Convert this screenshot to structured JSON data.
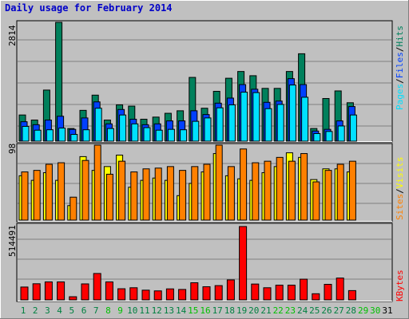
{
  "title": "Daily usage for February 2014",
  "colors": {
    "background": "#C0C0C0",
    "hits": "#00805C",
    "files": "#0040FF",
    "pages": "#00E0FF",
    "visits": "#FFFF00",
    "sites": "#FF8000",
    "kbytes": "#FF0000",
    "title": "#0000C8",
    "weekday": "#008040",
    "weekend_day": "#00C000"
  },
  "labels": {
    "pages": "Pages",
    "files": "Files",
    "hits": "Hits",
    "sites": "Sites",
    "visits": "Visits",
    "kbytes": "KBytes",
    "sep": "/"
  },
  "axis_max": {
    "top": "2814",
    "middle": "98",
    "bottom": "514491"
  },
  "chart_data": [
    {
      "type": "bar",
      "panel": "hits-files-pages",
      "categories": [
        "1",
        "2",
        "3",
        "4",
        "5",
        "6",
        "7",
        "8",
        "9",
        "10",
        "11",
        "12",
        "13",
        "14",
        "15",
        "16",
        "17",
        "18",
        "19",
        "20",
        "21",
        "22",
        "23",
        "24",
        "25",
        "26",
        "27",
        "28",
        "29",
        "30",
        "31"
      ],
      "ylim": [
        0,
        2814
      ],
      "series": [
        {
          "name": "Hits",
          "values": [
            620,
            500,
            1210,
            2814,
            300,
            730,
            1090,
            500,
            860,
            830,
            520,
            570,
            660,
            720,
            1510,
            780,
            1180,
            1490,
            1650,
            1550,
            1250,
            1250,
            1650,
            2070,
            300,
            1010,
            1190,
            910,
            0,
            0,
            0
          ]
        },
        {
          "name": "Files",
          "values": [
            460,
            390,
            500,
            590,
            280,
            550,
            930,
            410,
            750,
            520,
            390,
            410,
            480,
            480,
            720,
            630,
            900,
            1020,
            1340,
            1230,
            920,
            950,
            1480,
            1340,
            240,
            280,
            480,
            820,
            0,
            0,
            0
          ]
        },
        {
          "name": "Pages",
          "values": [
            350,
            260,
            270,
            310,
            160,
            270,
            780,
            300,
            620,
            410,
            320,
            260,
            280,
            270,
            470,
            550,
            790,
            860,
            1160,
            1150,
            770,
            870,
            1330,
            1040,
            180,
            230,
            360,
            620,
            0,
            0,
            0
          ]
        }
      ]
    },
    {
      "type": "bar",
      "panel": "visits-sites",
      "categories": [
        "1",
        "2",
        "3",
        "4",
        "5",
        "6",
        "7",
        "8",
        "9",
        "10",
        "11",
        "12",
        "13",
        "14",
        "15",
        "16",
        "17",
        "18",
        "19",
        "20",
        "21",
        "22",
        "23",
        "24",
        "25",
        "26",
        "27",
        "28",
        "29",
        "30",
        "31"
      ],
      "ylim": [
        0,
        98
      ],
      "series": [
        {
          "name": "Visits",
          "values": [
            58,
            52,
            62,
            52,
            19,
            83,
            65,
            70,
            85,
            43,
            52,
            55,
            52,
            32,
            48,
            63,
            87,
            58,
            54,
            52,
            62,
            70,
            88,
            82,
            53,
            67,
            67,
            63,
            0,
            0,
            0
          ]
        },
        {
          "name": "Sites",
          "values": [
            63,
            65,
            73,
            75,
            30,
            78,
            98,
            60,
            77,
            63,
            67,
            68,
            70,
            65,
            70,
            73,
            98,
            70,
            93,
            75,
            77,
            82,
            77,
            87,
            50,
            65,
            73,
            77,
            0,
            0,
            0
          ]
        }
      ]
    },
    {
      "type": "bar",
      "panel": "kbytes",
      "categories": [
        "1",
        "2",
        "3",
        "4",
        "5",
        "6",
        "7",
        "8",
        "9",
        "10",
        "11",
        "12",
        "13",
        "14",
        "15",
        "16",
        "17",
        "18",
        "19",
        "20",
        "21",
        "22",
        "23",
        "24",
        "25",
        "26",
        "27",
        "28",
        "29",
        "30",
        "31"
      ],
      "ylim": [
        0,
        514491
      ],
      "series": [
        {
          "name": "KBytes",
          "values": [
            90000,
            113000,
            126000,
            126000,
            22000,
            112000,
            185000,
            126000,
            78000,
            85000,
            68000,
            63000,
            77000,
            73000,
            120000,
            92000,
            100000,
            140000,
            514491,
            111000,
            85000,
            103000,
            103000,
            145000,
            43000,
            109000,
            153000,
            65000,
            0,
            0,
            0
          ]
        }
      ]
    }
  ],
  "days": [
    {
      "label": "1",
      "weekend": false
    },
    {
      "label": "2",
      "weekend": false
    },
    {
      "label": "3",
      "weekend": false
    },
    {
      "label": "4",
      "weekend": false
    },
    {
      "label": "5",
      "weekend": false
    },
    {
      "label": "6",
      "weekend": false
    },
    {
      "label": "7",
      "weekend": false
    },
    {
      "label": "8",
      "weekend": true
    },
    {
      "label": "9",
      "weekend": true
    },
    {
      "label": "10",
      "weekend": false
    },
    {
      "label": "11",
      "weekend": false
    },
    {
      "label": "12",
      "weekend": false
    },
    {
      "label": "13",
      "weekend": false
    },
    {
      "label": "14",
      "weekend": false
    },
    {
      "label": "15",
      "weekend": true
    },
    {
      "label": "16",
      "weekend": true
    },
    {
      "label": "17",
      "weekend": false
    },
    {
      "label": "18",
      "weekend": false
    },
    {
      "label": "19",
      "weekend": false
    },
    {
      "label": "20",
      "weekend": false
    },
    {
      "label": "21",
      "weekend": false
    },
    {
      "label": "22",
      "weekend": true
    },
    {
      "label": "23",
      "weekend": true
    },
    {
      "label": "24",
      "weekend": false
    },
    {
      "label": "25",
      "weekend": false
    },
    {
      "label": "26",
      "weekend": false
    },
    {
      "label": "27",
      "weekend": false
    },
    {
      "label": "28",
      "weekend": false
    },
    {
      "label": "29",
      "weekend": true
    },
    {
      "label": "30",
      "weekend": true
    },
    {
      "label": "31",
      "weekend": false
    }
  ]
}
